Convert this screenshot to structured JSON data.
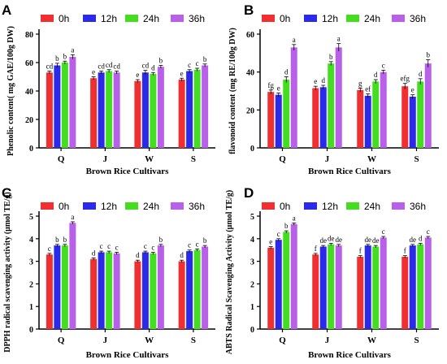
{
  "chart_data": [
    {
      "type": "bar",
      "panel": "A",
      "categories": [
        "Q",
        "J",
        "W",
        "S"
      ],
      "xlabel": "Brown Rice Cultivars",
      "ylabel": "Phenolic content( mg GAE/100g DW)",
      "ylim": [
        0,
        80
      ],
      "yticks": [
        0,
        20,
        40,
        60,
        80
      ],
      "legend": "top",
      "series": [
        {
          "name": "0h",
          "color": "#f03030",
          "values": [
            53,
            49,
            47,
            48
          ],
          "errors": [
            1,
            1,
            1,
            1
          ],
          "labels": [
            "cd",
            "e",
            "e",
            "e"
          ]
        },
        {
          "name": "12h",
          "color": "#2a2ae8",
          "values": [
            58,
            53,
            53,
            54
          ],
          "errors": [
            1.5,
            1,
            1.5,
            1
          ],
          "labels": [
            "b",
            "cd",
            "cd",
            "c"
          ]
        },
        {
          "name": "24h",
          "color": "#44dd22",
          "values": [
            60,
            54,
            52,
            55
          ],
          "errors": [
            1,
            1,
            1,
            1
          ],
          "labels": [
            "b",
            "cd",
            "d",
            "c"
          ]
        },
        {
          "name": "36h",
          "color": "#b860e8",
          "values": [
            64,
            53,
            57,
            58
          ],
          "errors": [
            1.5,
            1,
            1,
            1
          ],
          "labels": [
            "a",
            "cd",
            "b",
            "b"
          ]
        }
      ]
    },
    {
      "type": "bar",
      "panel": "B",
      "categories": [
        "Q",
        "J",
        "W",
        "S"
      ],
      "xlabel": "Brown Rice Cultivars",
      "ylabel": "flavonoid content (mg RE/100g DW)",
      "ylim": [
        0,
        60
      ],
      "yticks": [
        0,
        20,
        40,
        60
      ],
      "legend": "top",
      "series": [
        {
          "name": "0h",
          "color": "#f03030",
          "values": [
            29.5,
            31.5,
            30.5,
            32.5
          ],
          "errors": [
            1,
            1,
            1,
            1.5
          ],
          "labels": [
            "fg",
            "e",
            "g",
            "efg"
          ]
        },
        {
          "name": "12h",
          "color": "#2a2ae8",
          "values": [
            28,
            32,
            27.5,
            27
          ],
          "errors": [
            1,
            1,
            1,
            1
          ],
          "labels": [
            "e",
            "d",
            "ef",
            "e"
          ]
        },
        {
          "name": "24h",
          "color": "#44dd22",
          "values": [
            36,
            44.5,
            35,
            35
          ],
          "errors": [
            1.5,
            1,
            1,
            1.5
          ],
          "labels": [
            "d",
            "b",
            "d",
            "d"
          ]
        },
        {
          "name": "36h",
          "color": "#b860e8",
          "values": [
            53,
            53,
            40,
            44.5
          ],
          "errors": [
            1.5,
            2,
            1,
            2
          ],
          "labels": [
            "a",
            "a",
            "c",
            "b"
          ]
        }
      ]
    },
    {
      "type": "bar",
      "panel": "C",
      "categories": [
        "Q",
        "J",
        "W",
        "S"
      ],
      "xlabel": "Brown Rice Cultivars",
      "ylabel": "DPPH radical scavenging activity (μmol TE/g)",
      "ylim": [
        0,
        5
      ],
      "yticks": [
        0,
        1,
        2,
        3,
        4,
        5
      ],
      "legend": "top",
      "series": [
        {
          "name": "0h",
          "color": "#f03030",
          "values": [
            3.3,
            3.1,
            3.0,
            3.0
          ],
          "errors": [
            0.05,
            0.05,
            0.05,
            0.05
          ],
          "labels": [
            "c",
            "d",
            "d",
            "d"
          ]
        },
        {
          "name": "12h",
          "color": "#2a2ae8",
          "values": [
            3.7,
            3.4,
            3.4,
            3.45
          ],
          "errors": [
            0.05,
            0.05,
            0.05,
            0.05
          ],
          "labels": [
            "b",
            "c",
            "c",
            "c"
          ]
        },
        {
          "name": "24h",
          "color": "#44dd22",
          "values": [
            3.7,
            3.4,
            3.35,
            3.5
          ],
          "errors": [
            0.05,
            0.05,
            0.05,
            0.05
          ],
          "labels": [
            "b",
            "c",
            "c",
            "c"
          ]
        },
        {
          "name": "36h",
          "color": "#b860e8",
          "values": [
            4.7,
            3.35,
            3.7,
            3.65
          ],
          "errors": [
            0.05,
            0.05,
            0.05,
            0.05
          ],
          "labels": [
            "a",
            "c",
            "b",
            "b"
          ]
        }
      ]
    },
    {
      "type": "bar",
      "panel": "D",
      "categories": [
        "Q",
        "J",
        "W",
        "S"
      ],
      "xlabel": "Brown Rice Cultivars",
      "ylabel": "ABTS Radical Scavenging Activity (μmol TE/g)",
      "ylim": [
        0,
        5
      ],
      "yticks": [
        0,
        1,
        2,
        3,
        4,
        5
      ],
      "legend": "top",
      "series": [
        {
          "name": "0h",
          "color": "#f03030",
          "values": [
            3.6,
            3.3,
            3.2,
            3.2
          ],
          "errors": [
            0.05,
            0.05,
            0.05,
            0.05
          ],
          "labels": [
            "e",
            "f",
            "f",
            "f"
          ]
        },
        {
          "name": "12h",
          "color": "#2a2ae8",
          "values": [
            3.95,
            3.65,
            3.7,
            3.7
          ],
          "errors": [
            0.05,
            0.05,
            0.05,
            0.05
          ],
          "labels": [
            "c",
            "de",
            "de",
            "de"
          ]
        },
        {
          "name": "24h",
          "color": "#44dd22",
          "values": [
            4.3,
            3.75,
            3.65,
            3.75
          ],
          "errors": [
            0.05,
            0.05,
            0.05,
            0.05
          ],
          "labels": [
            "b",
            "de",
            "de",
            "d"
          ]
        },
        {
          "name": "36h",
          "color": "#b860e8",
          "values": [
            4.65,
            3.7,
            4.05,
            4.05
          ],
          "errors": [
            0.05,
            0.05,
            0.05,
            0.05
          ],
          "labels": [
            "a",
            "de",
            "c",
            "c"
          ]
        }
      ]
    }
  ]
}
